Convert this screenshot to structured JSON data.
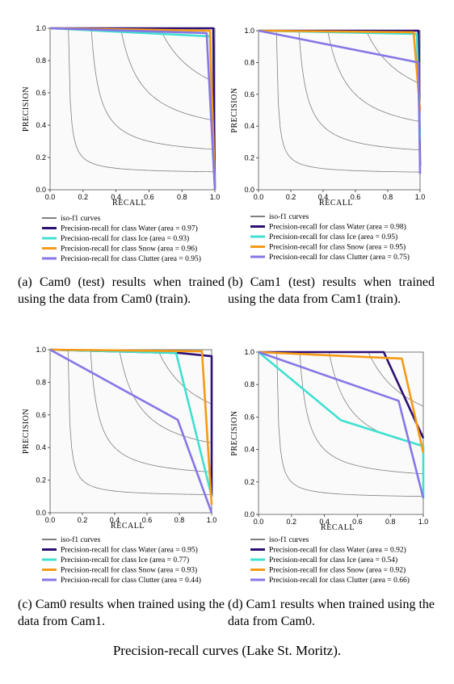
{
  "figure_caption": "Precision-recall curves (Lake St. Moritz).",
  "colors": {
    "iso": "#7f7f7f",
    "water": "#2c0f73",
    "ice": "#3fe0cf",
    "snow": "#f59a16",
    "clutter": "#8577e6"
  },
  "chart_data": [
    {
      "type": "line",
      "caption": "(a) Cam0 (test) results when trained using the data from Cam0 (train).",
      "xlabel": "RECALL",
      "ylabel": "PRECISION",
      "xlim": [
        0,
        1
      ],
      "ylim": [
        0,
        1
      ],
      "x_ticks": [
        "0.0",
        "0.2",
        "0.4",
        "0.6",
        "0.8",
        "1.0"
      ],
      "y_ticks": [
        "0.0",
        "0.2",
        "0.4",
        "0.6",
        "0.8",
        "1.0"
      ],
      "grid": false,
      "iso_label": "iso-f1 curves",
      "series": [
        {
          "key": "water",
          "name": "Precision-recall for class Water (area = 0.97)",
          "points": [
            [
              0,
              1.0
            ],
            [
              0.5,
              1.0
            ],
            [
              0.99,
              1.0
            ],
            [
              1.0,
              0.0
            ]
          ]
        },
        {
          "key": "ice",
          "name": "Precision-recall for class Ice (area = 0.93)",
          "points": [
            [
              0,
              1.0
            ],
            [
              0.97,
              0.95
            ],
            [
              1.0,
              0.0
            ]
          ]
        },
        {
          "key": "snow",
          "name": "Precision-recall for class Snow (area = 0.96)",
          "points": [
            [
              0,
              1.0
            ],
            [
              0.97,
              0.985
            ],
            [
              1.0,
              0.0
            ]
          ]
        },
        {
          "key": "clutter",
          "name": "Precision-recall for class Clutter (area = 0.95)",
          "points": [
            [
              0,
              1.0
            ],
            [
              0.95,
              0.97
            ],
            [
              1.0,
              0.0
            ]
          ]
        }
      ]
    },
    {
      "type": "line",
      "caption": "(b) Cam1 (test) results when trained using the data from Cam1 (train).",
      "xlabel": "RECALL",
      "ylabel": "PRECISION",
      "xlim": [
        0,
        1
      ],
      "ylim": [
        0,
        1
      ],
      "x_ticks": [
        "0.0",
        "0.2",
        "0.4",
        "0.6",
        "0.8",
        "1.0"
      ],
      "y_ticks": [
        "0.0",
        "0.2",
        "0.4",
        "0.6",
        "0.8",
        "1.0"
      ],
      "grid": false,
      "iso_label": "iso-f1 curves",
      "series": [
        {
          "key": "water",
          "name": "Precision-recall for class Water (area = 0.98)",
          "points": [
            [
              0,
              1.0
            ],
            [
              0.5,
              1.0
            ],
            [
              0.99,
              1.0
            ],
            [
              1.0,
              0.15
            ]
          ]
        },
        {
          "key": "ice",
          "name": "Precision-recall for class Ice (area = 0.95)",
          "points": [
            [
              0,
              1.0
            ],
            [
              0.98,
              0.98
            ],
            [
              1.0,
              0.3
            ]
          ]
        },
        {
          "key": "snow",
          "name": "Precision-recall for class Snow (area = 0.95)",
          "points": [
            [
              0,
              1.0
            ],
            [
              0.96,
              0.99
            ],
            [
              1.0,
              0.5
            ]
          ]
        },
        {
          "key": "clutter",
          "name": "Precision-recall for class Clutter (area = 0.75)",
          "points": [
            [
              0,
              1.0
            ],
            [
              0.99,
              0.8
            ],
            [
              1.0,
              0.1
            ]
          ]
        }
      ]
    },
    {
      "type": "line",
      "caption": "(c) Cam0 results when trained using the data from Cam1.",
      "xlabel": "RECALL",
      "ylabel": "PRECISION",
      "xlim": [
        0,
        1
      ],
      "ylim": [
        0,
        1
      ],
      "x_ticks": [
        "0.0",
        "0.2",
        "0.4",
        "0.6",
        "0.8",
        "1.0"
      ],
      "y_ticks": [
        "0.0",
        "0.2",
        "0.4",
        "0.6",
        "0.8",
        "1.0"
      ],
      "grid": false,
      "iso_label": "iso-f1 curves",
      "series": [
        {
          "key": "water",
          "name": "Precision-recall for class Water (area = 0.95)",
          "points": [
            [
              0,
              1.0
            ],
            [
              0.8,
              0.98
            ],
            [
              1.0,
              0.96
            ],
            [
              1.0,
              0.1
            ]
          ]
        },
        {
          "key": "ice",
          "name": "Precision-recall for class Ice (area = 0.77)",
          "points": [
            [
              0,
              1.0
            ],
            [
              0.78,
              0.98
            ],
            [
              1.0,
              0.1
            ]
          ]
        },
        {
          "key": "snow",
          "name": "Precision-recall for class Snow (area = 0.93)",
          "points": [
            [
              0,
              1.0
            ],
            [
              0.94,
              0.99
            ],
            [
              1.0,
              0.05
            ]
          ]
        },
        {
          "key": "clutter",
          "name": "Precision-recall for class Clutter (area = 0.44)",
          "points": [
            [
              0,
              1.0
            ],
            [
              0.79,
              0.57
            ],
            [
              1.0,
              0.0
            ]
          ]
        }
      ]
    },
    {
      "type": "line",
      "caption": "(d) Cam1 results when trained using the data from Cam0.",
      "xlabel": "RECALL",
      "ylabel": "PRECISION",
      "xlim": [
        0,
        1
      ],
      "ylim": [
        0,
        1
      ],
      "x_ticks": [
        "0.0",
        "0.2",
        "0.4",
        "0.6",
        "0.8",
        "1.0"
      ],
      "y_ticks": [
        "0.0",
        "0.2",
        "0.4",
        "0.6",
        "0.8",
        "1.0"
      ],
      "grid": false,
      "iso_label": "iso-f1 curves",
      "series": [
        {
          "key": "water",
          "name": "Precision-recall for class Water (area = 0.92)",
          "points": [
            [
              0,
              1.0
            ],
            [
              0.76,
              1.0
            ],
            [
              1.0,
              0.47
            ]
          ]
        },
        {
          "key": "ice",
          "name": "Precision-recall for class Ice (area = 0.54)",
          "points": [
            [
              0,
              1.0
            ],
            [
              0.5,
              0.58
            ],
            [
              1.0,
              0.42
            ],
            [
              1.0,
              0.1
            ]
          ]
        },
        {
          "key": "snow",
          "name": "Precision-recall for class Snow (area = 0.92)",
          "points": [
            [
              0,
              1.0
            ],
            [
              0.87,
              0.96
            ],
            [
              1.0,
              0.38
            ]
          ]
        },
        {
          "key": "clutter",
          "name": "Precision-recall for class Clutter (area = 0.66)",
          "points": [
            [
              0,
              1.0
            ],
            [
              0.85,
              0.7
            ],
            [
              1.0,
              0.1
            ]
          ]
        }
      ]
    }
  ]
}
